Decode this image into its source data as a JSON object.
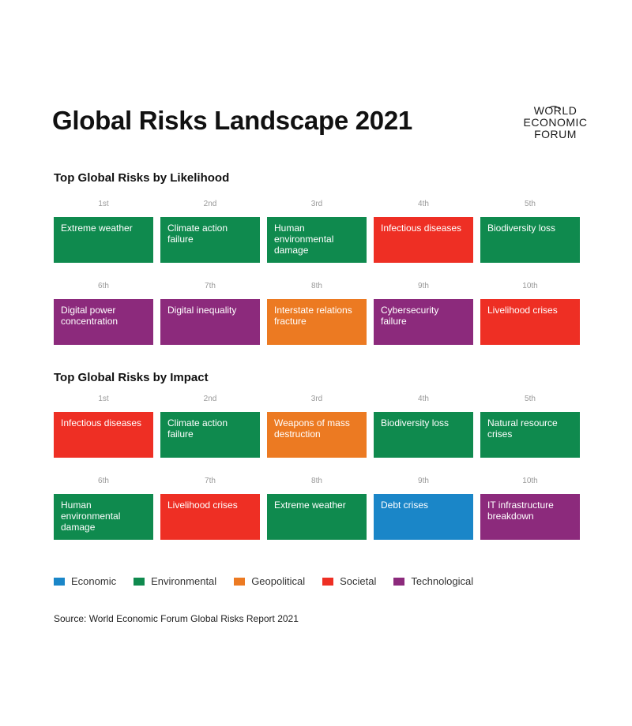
{
  "title": "Global Risks Landscape 2021",
  "logo": {
    "line1": "WORLD",
    "line2": "ECONOMIC",
    "line3": "FORUM"
  },
  "colors": {
    "Economic": "#1a86c8",
    "Environmental": "#0f8a4e",
    "Geopolitical": "#ec7a22",
    "Societal": "#ee2f24",
    "Technological": "#8c2a7c"
  },
  "sections": [
    {
      "heading_bold": "Top Global Risks",
      "heading_rest": " by Likelihood",
      "rows": [
        [
          {
            "rank": "1st",
            "label": "Extreme weather",
            "category": "Environmental"
          },
          {
            "rank": "2nd",
            "label": "Climate action failure",
            "category": "Environmental"
          },
          {
            "rank": "3rd",
            "label": "Human environmental damage",
            "category": "Environmental"
          },
          {
            "rank": "4th",
            "label": "Infectious diseases",
            "category": "Societal"
          },
          {
            "rank": "5th",
            "label": "Biodiversity loss",
            "category": "Environmental"
          }
        ],
        [
          {
            "rank": "6th",
            "label": "Digital power concentration",
            "category": "Technological"
          },
          {
            "rank": "7th",
            "label": "Digital inequality",
            "category": "Technological"
          },
          {
            "rank": "8th",
            "label": "Interstate relations fracture",
            "category": "Geopolitical"
          },
          {
            "rank": "9th",
            "label": "Cybersecurity failure",
            "category": "Technological"
          },
          {
            "rank": "10th",
            "label": "Livelihood crises",
            "category": "Societal"
          }
        ]
      ]
    },
    {
      "heading_bold": "Top Global Risks",
      "heading_rest": " by Impact",
      "rows": [
        [
          {
            "rank": "1st",
            "label": "Infectious diseases",
            "category": "Societal"
          },
          {
            "rank": "2nd",
            "label": "Climate action failure",
            "category": "Environmental"
          },
          {
            "rank": "3rd",
            "label": "Weapons of mass destruction",
            "category": "Geopolitical"
          },
          {
            "rank": "4th",
            "label": "Biodiversity loss",
            "category": "Environmental"
          },
          {
            "rank": "5th",
            "label": "Natural resource crises",
            "category": "Environmental"
          }
        ],
        [
          {
            "rank": "6th",
            "label": "Human environmental damage",
            "category": "Environmental"
          },
          {
            "rank": "7th",
            "label": "Livelihood crises",
            "category": "Societal"
          },
          {
            "rank": "8th",
            "label": "Extreme weather",
            "category": "Environmental"
          },
          {
            "rank": "9th",
            "label": "Debt crises",
            "category": "Economic"
          },
          {
            "rank": "10th",
            "label": "IT infrastructure breakdown",
            "category": "Technological"
          }
        ]
      ]
    }
  ],
  "legend": [
    "Economic",
    "Environmental",
    "Geopolitical",
    "Societal",
    "Technological"
  ],
  "source": "Source: World Economic Forum Global Risks Report 2021"
}
